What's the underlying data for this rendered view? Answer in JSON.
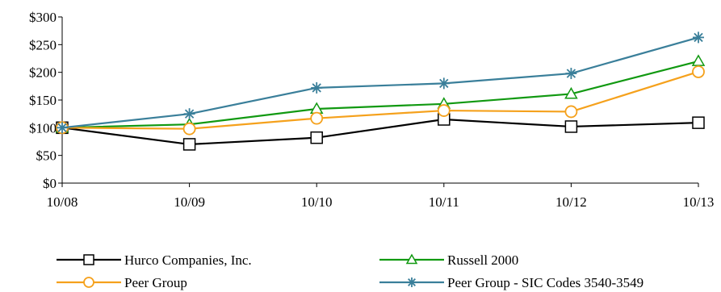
{
  "chart_data": {
    "type": "line",
    "categories": [
      "10/08",
      "10/09",
      "10/10",
      "10/11",
      "10/12",
      "10/13"
    ],
    "ylim": [
      0,
      300
    ],
    "y_ticks": [
      0,
      50,
      100,
      150,
      200,
      250,
      300
    ],
    "y_tick_labels": [
      "$0",
      "$50",
      "$100",
      "$150",
      "$200",
      "$250",
      "$300"
    ],
    "grid": false,
    "legend_position": "bottom",
    "series": [
      {
        "name": "Hurco Companies, Inc.",
        "values": [
          100,
          70,
          82,
          115,
          102,
          109
        ],
        "color": "#000000",
        "marker": "square"
      },
      {
        "name": "Russell 2000",
        "values": [
          100,
          106,
          134,
          143,
          161,
          220
        ],
        "color": "#119911",
        "marker": "triangle"
      },
      {
        "name": "Peer Group",
        "values": [
          100,
          98,
          117,
          131,
          129,
          201
        ],
        "color": "#f5a11c",
        "marker": "circle"
      },
      {
        "name": "Peer Group - SIC Codes 3540-3549",
        "values": [
          100,
          125,
          172,
          180,
          198,
          263
        ],
        "color": "#3a7f9a",
        "marker": "asterisk"
      }
    ]
  }
}
